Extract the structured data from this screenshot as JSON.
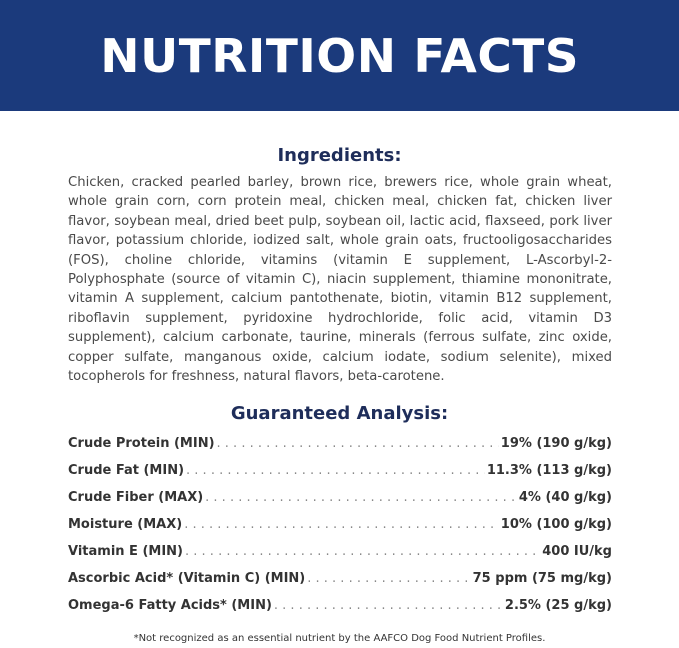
{
  "header": {
    "title": "NUTRITION FACTS",
    "background": "#1b3a7c"
  },
  "ingredients": {
    "title": "Ingredients:",
    "text": "Chicken, cracked pearled barley, brown rice, brewers rice, whole grain wheat, whole grain corn, corn protein meal, chicken meal, chicken fat, chicken liver flavor, soybean meal, dried beet pulp, soybean oil, lactic acid, flaxseed, pork liver flavor, potassium chloride, iodized salt, whole grain oats, fructooligosaccharides (FOS), choline chloride, vitamins (vitamin E supplement, L-Ascorbyl-2-Polyphosphate (source of vitamin C), niacin supplement, thiamine mononitrate, vitamin A supplement, calcium pantothenate, biotin, vitamin B12 supplement, riboflavin supplement, pyridoxine hydrochloride, folic acid, vitamin D3 supplement), calcium carbonate, taurine, minerals (ferrous sulfate, zinc oxide, copper sulfate, manganous oxide, calcium iodate, sodium selenite), mixed tocopherols for freshness, natural flavors, beta-carotene."
  },
  "analysis": {
    "title": "Guaranteed Analysis:",
    "rows": [
      {
        "label": "Crude Protein (MIN)",
        "value": "19% (190 g/kg)"
      },
      {
        "label": "Crude Fat (MIN)",
        "value": "11.3% (113 g/kg)"
      },
      {
        "label": "Crude Fiber (MAX)",
        "value": "4% (40 g/kg)"
      },
      {
        "label": "Moisture (MAX)",
        "value": "10% (100 g/kg)"
      },
      {
        "label": "Vitamin E (MIN)",
        "value": "400 IU/kg"
      },
      {
        "label": "Ascorbic Acid* (Vitamin C) (MIN)",
        "value": "75 ppm (75 mg/kg)"
      },
      {
        "label": "Omega-6 Fatty Acids* (MIN)",
        "value": "2.5% (25 g/kg)"
      }
    ]
  },
  "footnote": "*Not recognized as an essential nutrient by the AAFCO Dog Food Nutrient Profiles."
}
